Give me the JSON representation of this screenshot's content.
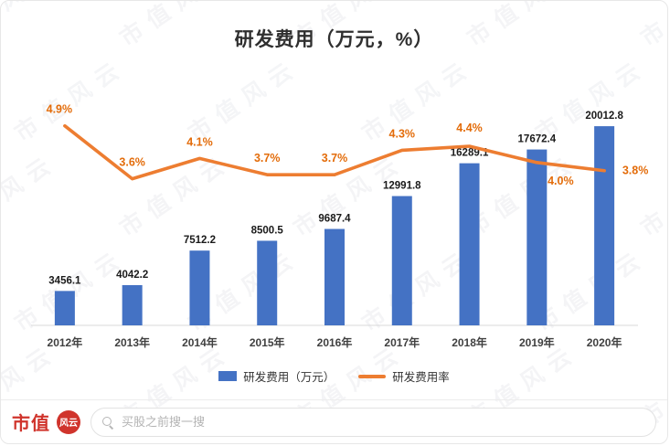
{
  "chart_data": {
    "type": "bar+line",
    "title": "研发费用（万元，%）",
    "categories": [
      "2012年",
      "2013年",
      "2014年",
      "2015年",
      "2016年",
      "2017年",
      "2018年",
      "2019年",
      "2020年"
    ],
    "series": [
      {
        "name": "研发费用（万元）",
        "type": "bar",
        "axis": "left",
        "color": "#4472C4",
        "values": [
          3456.1,
          4042.2,
          7512.2,
          8500.5,
          9687.4,
          12991.8,
          16289.1,
          17672.4,
          20012.8
        ],
        "labels": [
          "3456.1",
          "4042.2",
          "7512.2",
          "8500.5",
          "9687.4",
          "12991.8",
          "16289.1",
          "17672.4",
          "20012.8"
        ]
      },
      {
        "name": "研发费用率",
        "type": "line",
        "axis": "right",
        "color": "#ED7D31",
        "label_color": "#E36C0A",
        "values": [
          4.9,
          3.6,
          4.1,
          3.7,
          3.7,
          4.3,
          4.4,
          4.0,
          3.8
        ],
        "labels": [
          "4.9%",
          "3.6%",
          "4.1%",
          "3.7%",
          "3.7%",
          "4.3%",
          "4.4%",
          "4.0%",
          "3.8%"
        ]
      }
    ],
    "ylim": [
      0,
      22500
    ],
    "y2lim": [
      0,
      5.5
    ],
    "grid": false,
    "legend_position": "bottom",
    "axis_line_color": "#d9d9d9"
  },
  "watermark": {
    "text": "市值风云"
  },
  "footer": {
    "brand": "市值",
    "logo_text": "风云",
    "search_placeholder": "买股之前搜一搜"
  }
}
